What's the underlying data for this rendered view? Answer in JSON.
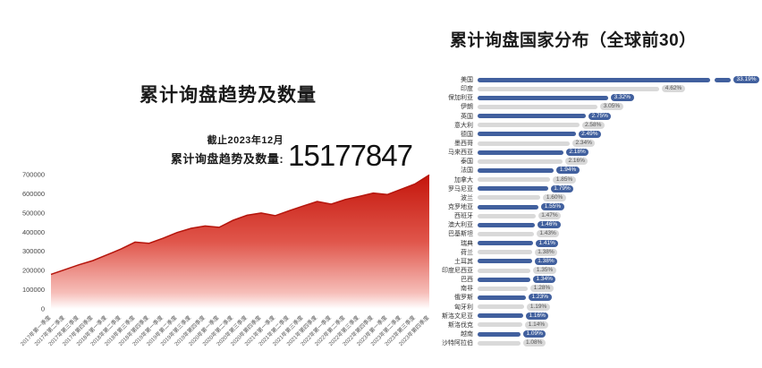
{
  "page": {
    "background": "#ffffff"
  },
  "left_panel": {
    "title": "累计询盘趋势及数量",
    "asof": "截止2023年12月",
    "stat_label": "累计询盘趋势及数量:",
    "stat_value": "15177847"
  },
  "right_panel": {
    "title": "累计询盘国家分布（全球前30）"
  },
  "colors": {
    "area_red_top": "#c4150b",
    "area_red_mid": "#e0564b",
    "area_line": "#b5150c",
    "bar_blue": "#41609e",
    "bar_gray": "#d9d9d9",
    "pill_blue_text": "#ffffff",
    "pill_gray_text": "#555555",
    "tick_text": "#444444"
  },
  "chart_data": [
    {
      "type": "area",
      "title": "累计询盘趋势及数量",
      "xlabel": "",
      "ylabel": "",
      "ylim": [
        0,
        700000
      ],
      "y_ticks": [
        0,
        100000,
        200000,
        300000,
        400000,
        500000,
        600000,
        700000
      ],
      "grid": false,
      "legend": "none",
      "x": [
        "2017年第一季度",
        "2017年第二季度",
        "2017年第三季度",
        "2017年第四季度",
        "2018年第一季度",
        "2018年第二季度",
        "2018年第三季度",
        "2018年第四季度",
        "2019年第一季度",
        "2019年第二季度",
        "2019年第三季度",
        "2019年第四季度",
        "2020年第一季度",
        "2020年第二季度",
        "2020年第三季度",
        "2020年第四季度",
        "2021年第一季度",
        "2021年第二季度",
        "2021年第三季度",
        "2021年第四季度",
        "2022年第一季度",
        "2022年第二季度",
        "2022年第三季度",
        "2022年第四季度",
        "2023年第一季度",
        "2023年第二季度",
        "2023年第三季度",
        "2023年第四季度"
      ],
      "values": [
        180000,
        205000,
        230000,
        252000,
        282000,
        312000,
        348000,
        342000,
        368000,
        398000,
        420000,
        432000,
        425000,
        462000,
        488000,
        500000,
        486000,
        512000,
        536000,
        560000,
        546000,
        570000,
        586000,
        604000,
        596000,
        624000,
        652000,
        698000
      ]
    },
    {
      "type": "bar",
      "orientation": "horizontal",
      "title": "累计询盘国家分布（全球前30）",
      "unit": "%",
      "legend": "none",
      "first_bar_truncated": true,
      "categories": [
        "美国",
        "印度",
        "保加利亚",
        "伊朗",
        "英国",
        "意大利",
        "德国",
        "墨西哥",
        "马来西亚",
        "泰国",
        "法国",
        "加拿大",
        "罗马尼亚",
        "波兰",
        "克罗地亚",
        "西班牙",
        "澳大利亚",
        "巴基斯坦",
        "瑞典",
        "荷兰",
        "土耳其",
        "印度尼西亚",
        "巴西",
        "南非",
        "俄罗斯",
        "匈牙利",
        "斯洛文尼亚",
        "斯洛伐克",
        "越南",
        "沙特阿拉伯"
      ],
      "values": [
        33.19,
        4.62,
        3.32,
        3.05,
        2.75,
        2.58,
        2.49,
        2.34,
        2.18,
        2.16,
        1.94,
        1.85,
        1.79,
        1.6,
        1.55,
        1.47,
        1.46,
        1.43,
        1.41,
        1.38,
        1.38,
        1.35,
        1.34,
        1.28,
        1.23,
        1.19,
        1.16,
        1.14,
        1.09,
        1.08
      ],
      "value_labels": [
        "33.19%",
        "4.62%",
        "3.32%",
        "3.05%",
        "2.75%",
        "2.58%",
        "2.49%",
        "2.34%",
        "2.18%",
        "2.16%",
        "1.94%",
        "1.85%",
        "1.79%",
        "1.60%",
        "1.55%",
        "1.47%",
        "1.46%",
        "1.43%",
        "1.41%",
        "1.38%",
        "1.38%",
        "1.35%",
        "1.34%",
        "1.28%",
        "1.23%",
        "1.19%",
        "1.16%",
        "1.14%",
        "1.09%",
        "1.08%"
      ]
    }
  ]
}
